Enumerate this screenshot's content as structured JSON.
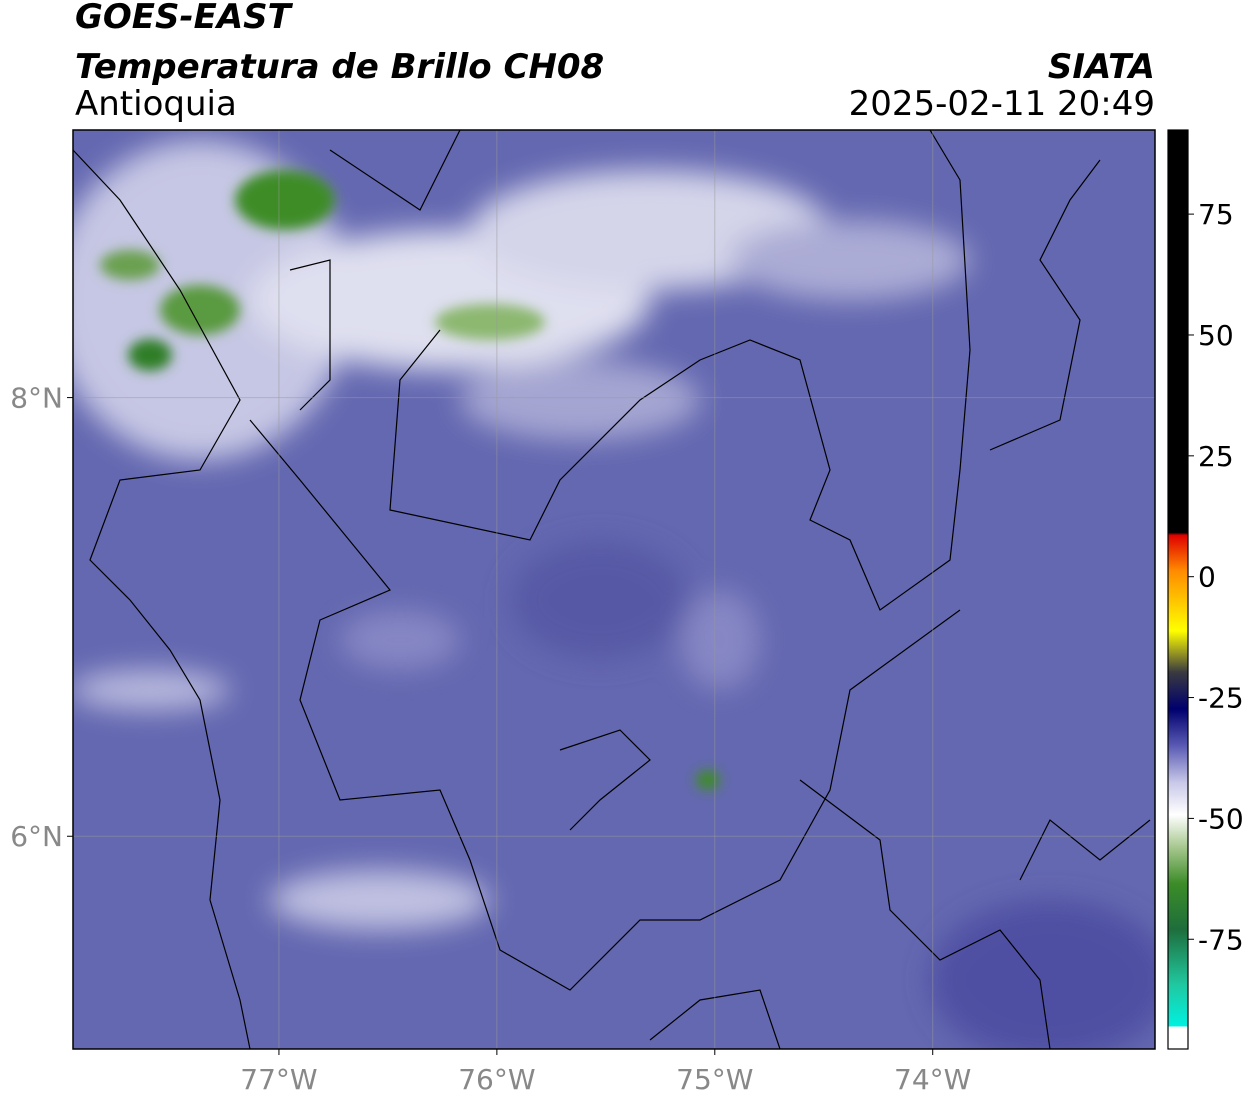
{
  "header": {
    "title": "GOES-EAST",
    "subtitle": "Temperatura de Brillo CH08",
    "region": "Antioquia",
    "source": "SIATA",
    "datetime": "2025-02-11 20:49"
  },
  "map": {
    "xlim": [
      -77.945,
      -72.98
    ],
    "ylim": [
      5.03,
      9.22
    ],
    "xticks": [
      {
        "value": -77,
        "label": "77°W"
      },
      {
        "value": -76,
        "label": "76°W"
      },
      {
        "value": -75,
        "label": "75°W"
      },
      {
        "value": -74,
        "label": "74°W"
      }
    ],
    "yticks": [
      {
        "value": 8,
        "label": "8°N"
      },
      {
        "value": 6,
        "label": "6°N"
      }
    ]
  },
  "colorbar": {
    "lim": [
      -97.7,
      92.4
    ],
    "ticks": [
      75,
      50,
      25,
      0,
      -25,
      -50,
      -75
    ]
  }
}
